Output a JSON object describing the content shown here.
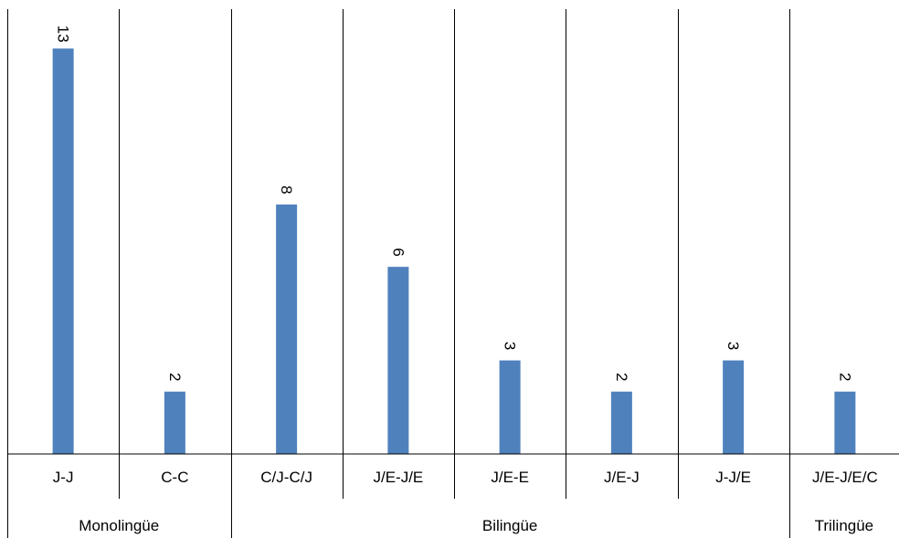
{
  "chart_data": {
    "type": "bar",
    "categories": [
      "J-J",
      "C-C",
      "C/J-C/J",
      "J/E-J/E",
      "J/E-E",
      "J/E-J",
      "J-J/E",
      "J/E-J/E/C"
    ],
    "values": [
      13,
      2,
      8,
      6,
      3,
      2,
      3,
      2
    ],
    "groups": [
      {
        "label": "Monolingüe",
        "categories": [
          "J-J",
          "C-C"
        ]
      },
      {
        "label": "Bilingüe",
        "categories": [
          "C/J-C/J",
          "J/E-J/E",
          "J/E-E",
          "J/E-J",
          "J-J/E"
        ]
      },
      {
        "label": "Trilingüe",
        "categories": [
          "J/E-J/E/C"
        ]
      }
    ],
    "data_labels": [
      "13",
      "2",
      "8",
      "6",
      "3",
      "2",
      "3",
      "2"
    ],
    "bar_color": "#4F81BD",
    "ylim": [
      0,
      14
    ],
    "grid": false,
    "legend": "none",
    "category_separators": true,
    "data_label_orientation": "rotated-90"
  }
}
